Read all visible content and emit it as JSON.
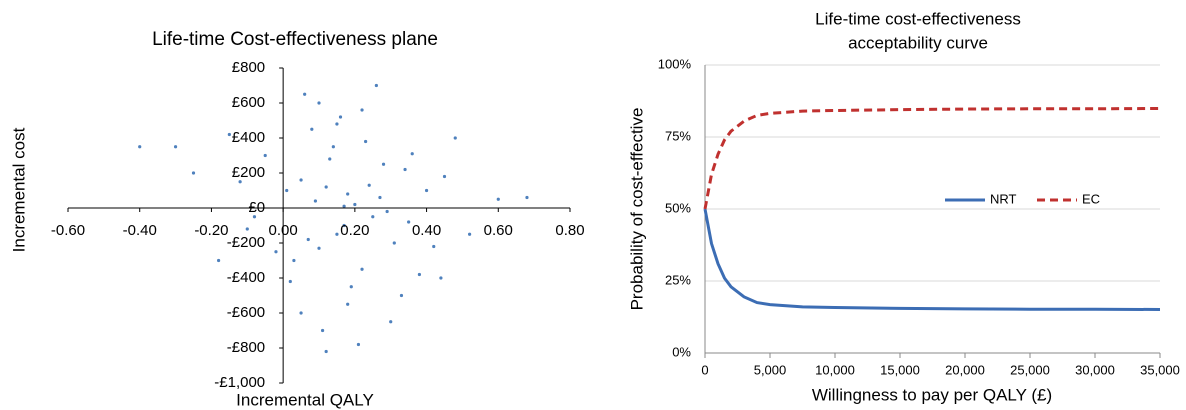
{
  "chart_data": [
    {
      "type": "scatter",
      "title": "Life-time Cost-effectiveness plane",
      "x_label": "Incremental QALY",
      "y_label": "Incremental cost",
      "color": "#4f81bd",
      "xlim": [
        -0.6,
        0.8
      ],
      "ylim": [
        -1000,
        800
      ],
      "xticks": [
        {
          "value": -0.6,
          "label": "-0.60"
        },
        {
          "value": -0.4,
          "label": "-0.40"
        },
        {
          "value": -0.2,
          "label": "-0.20"
        },
        {
          "value": 0,
          "label": "0.00"
        },
        {
          "value": 0.2,
          "label": "0.20"
        },
        {
          "value": 0.4,
          "label": "0.40"
        },
        {
          "value": 0.6,
          "label": "0.60"
        },
        {
          "value": 0.8,
          "label": "0.80"
        }
      ],
      "yticks": [
        {
          "value": -1000,
          "label": "-£1,000"
        },
        {
          "value": -800,
          "label": "-£800"
        },
        {
          "value": -600,
          "label": "-£600"
        },
        {
          "value": -400,
          "label": "-£400"
        },
        {
          "value": -200,
          "label": "-£200"
        },
        {
          "value": 0,
          "label": "£0"
        },
        {
          "value": 200,
          "label": "£200"
        },
        {
          "value": 400,
          "label": "£400"
        },
        {
          "value": 600,
          "label": "£600"
        },
        {
          "value": 800,
          "label": "£800"
        }
      ],
      "x": [
        0.12,
        0.25,
        -0.05,
        0.18,
        0.31,
        0.08,
        0.22,
        -0.12,
        0.4,
        0.15,
        0.02,
        0.28,
        0.1,
        0.35,
        -0.18,
        0.2,
        0.05,
        0.45,
        0.14,
        -0.02,
        0.26,
        0.33,
        0.09,
        0.17,
        -0.25,
        0.52,
        0.11,
        0.23,
        0.01,
        0.38,
        0.16,
        0.29,
        -0.08,
        0.13,
        0.42,
        0.19,
        0.06,
        0.27,
        -0.15,
        0.21,
        0.34,
        0.03,
        0.48,
        0.12,
        0.24,
        -0.3,
        0.18,
        0.07,
        0.36,
        0.15,
        0.6,
        -0.4,
        0.68,
        0.3,
        0.1,
        0.22,
        -0.1,
        0.44,
        0.05,
        0.17
      ],
      "values": [
        120,
        -50,
        300,
        80,
        -200,
        450,
        -350,
        150,
        100,
        -150,
        -420,
        250,
        600,
        -80,
        -300,
        20,
        -600,
        180,
        350,
        -250,
        700,
        -500,
        40,
        -100,
        200,
        -150,
        -700,
        380,
        100,
        -380,
        520,
        -20,
        -50,
        280,
        -220,
        -450,
        650,
        60,
        420,
        -780,
        220,
        -300,
        400,
        -820,
        130,
        350,
        -550,
        -180,
        310,
        480,
        50,
        350,
        60,
        -650,
        -230,
        560,
        -120,
        -400,
        160,
        10
      ]
    },
    {
      "type": "line",
      "title": [
        "Life-time cost-effectiveness",
        "acceptability curve"
      ],
      "x_label": "Willingness to pay per QALY (£)",
      "y_label": "Probability of cost-effective",
      "xlim": [
        0,
        35000
      ],
      "ylim": [
        0,
        100
      ],
      "grid": true,
      "legend": "center",
      "xticks": [
        0,
        {
          "value": 5000,
          "label": "5,000"
        },
        {
          "value": 10000,
          "label": "10,000"
        },
        {
          "value": 15000,
          "label": "15,000"
        },
        {
          "value": 20000,
          "label": "20,000"
        },
        {
          "value": 25000,
          "label": "25,000"
        },
        {
          "value": 30000,
          "label": "30,000"
        },
        {
          "value": 35000,
          "label": "35,000"
        }
      ],
      "yticks": [
        {
          "value": 0,
          "label": "0%"
        },
        {
          "value": 25,
          "label": "25%"
        },
        {
          "value": 50,
          "label": "50%"
        },
        {
          "value": 75,
          "label": "75%"
        },
        {
          "value": 100,
          "label": "100%"
        }
      ],
      "x": [
        0,
        500,
        1000,
        1500,
        2000,
        3000,
        4000,
        5000,
        7500,
        10000,
        15000,
        20000,
        25000,
        30000,
        35000
      ],
      "series": [
        {
          "name": "NRT",
          "color": "#3c6db4",
          "dash": false,
          "values": [
            50,
            38,
            31,
            26,
            23,
            19.5,
            17.5,
            16.8,
            16,
            15.8,
            15.5,
            15.3,
            15.2,
            15.2,
            15.1
          ]
        },
        {
          "name": "EC",
          "color": "#c0312f",
          "dash": true,
          "values": [
            50,
            62,
            69,
            74,
            77,
            80.5,
            82.5,
            83.2,
            84,
            84.2,
            84.5,
            84.7,
            84.8,
            84.8,
            84.9
          ]
        }
      ]
    }
  ]
}
